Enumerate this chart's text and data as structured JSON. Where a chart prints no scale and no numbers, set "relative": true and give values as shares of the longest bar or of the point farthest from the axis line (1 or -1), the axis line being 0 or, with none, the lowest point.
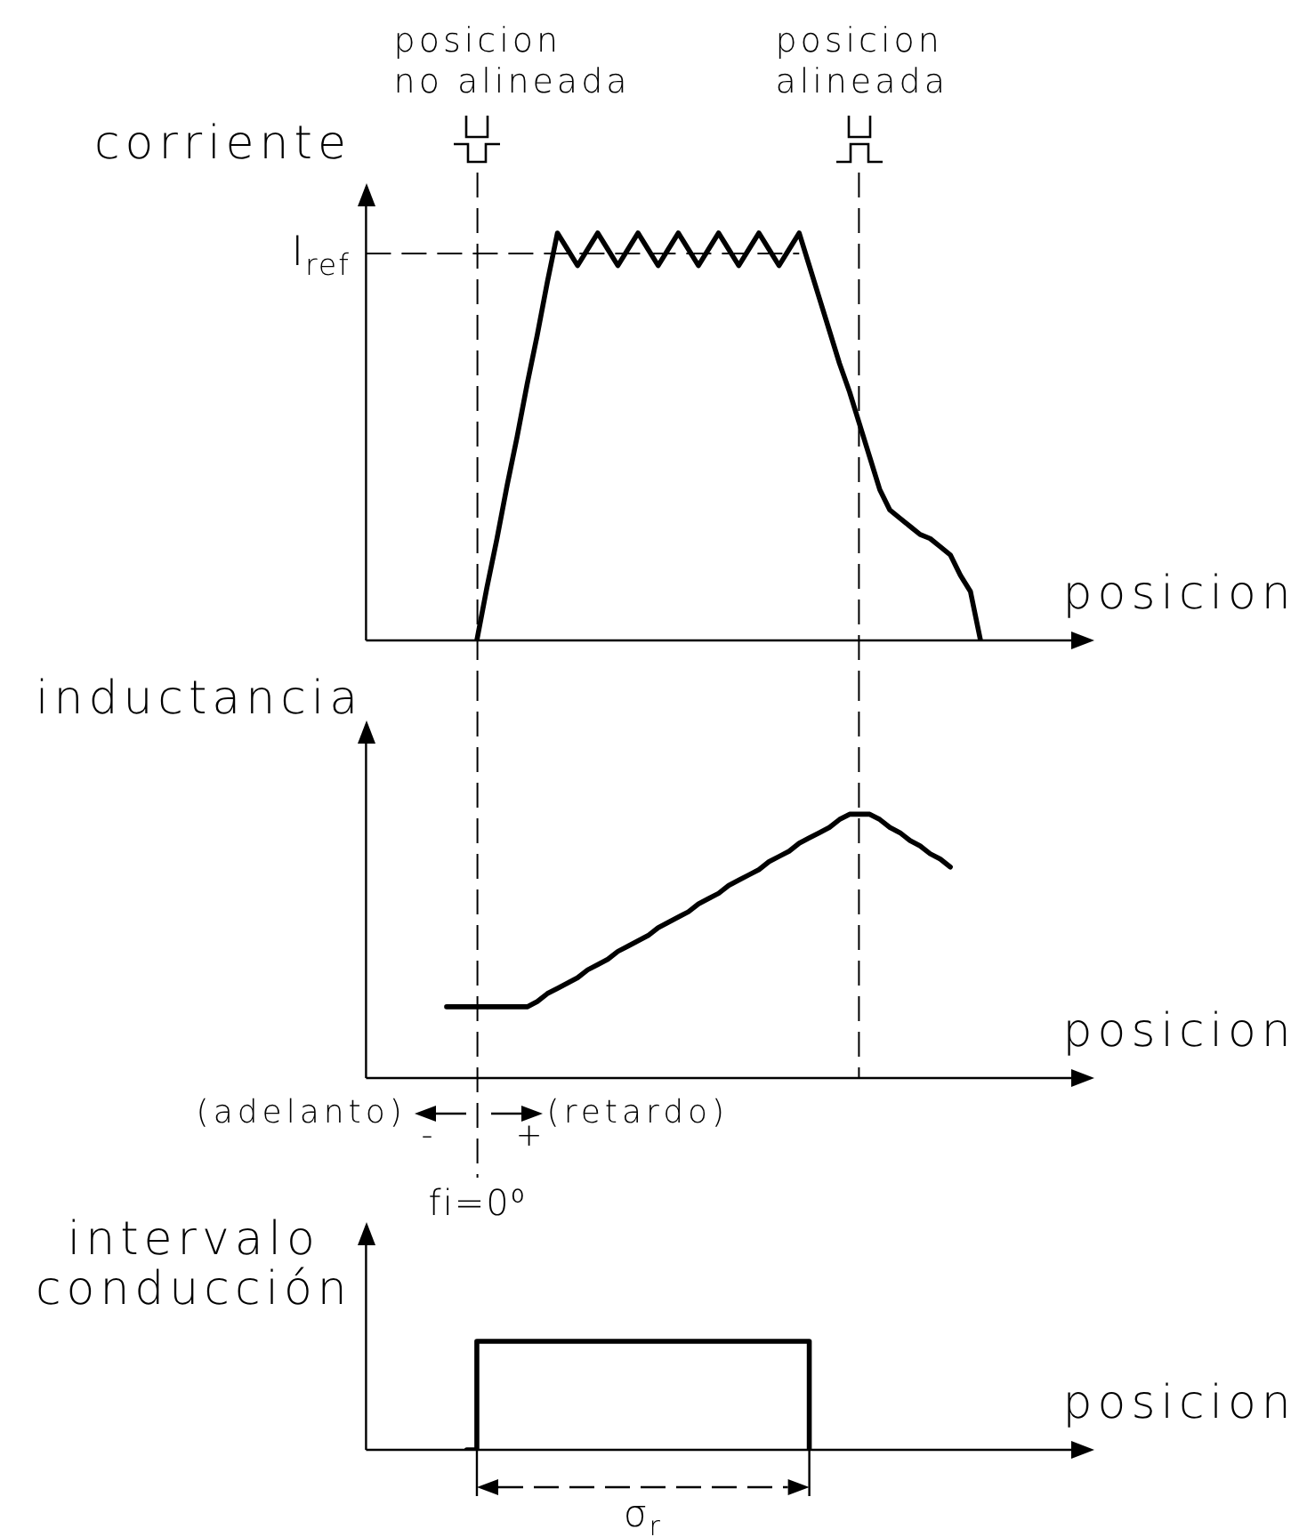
{
  "chart_data": [
    {
      "type": "line",
      "ylabel": "corriente",
      "xlabel": "posicion",
      "relative": true,
      "marker": "none",
      "categories": [
        null,
        null,
        null,
        null,
        null,
        null,
        null,
        null,
        null,
        null,
        null,
        null,
        null,
        null,
        null,
        null,
        null,
        null,
        null,
        null,
        null,
        null,
        null,
        null,
        null,
        null,
        null,
        null,
        null,
        null,
        null,
        null,
        null,
        null,
        null,
        null,
        null,
        null,
        null,
        null,
        null,
        null,
        null,
        null,
        null,
        null,
        null,
        null,
        null,
        null,
        null,
        null,
        null,
        null,
        null,
        null,
        null,
        null,
        null,
        null,
        null,
        null,
        null,
        null,
        null,
        null,
        null,
        null,
        null,
        null,
        null,
        null,
        null
      ],
      "series": [
        {
          "color": "#000000",
          "values": [
            null,
            null,
            null,
            null,
            null,
            null,
            null,
            null,
            null,
            null,
            null,
            0,
            0.13,
            0.25,
            0.38,
            0.5,
            0.63,
            0.75,
            0.88,
            1,
            0.96,
            0.92,
            0.96,
            1,
            0.96,
            0.92,
            0.96,
            1,
            0.96,
            0.92,
            0.96,
            1,
            0.96,
            0.92,
            0.96,
            1,
            0.96,
            0.92,
            0.96,
            1,
            0.96,
            0.92,
            0.96,
            1,
            0.92,
            0.84,
            0.76,
            0.68,
            0.61,
            0.53,
            0.45,
            0.37,
            0.32,
            0.3,
            0.28,
            0.26,
            0.25,
            0.23,
            0.21,
            0.16,
            0.12,
            0,
            null,
            null,
            null,
            null,
            null,
            null,
            null,
            null,
            null,
            null,
            null
          ]
        }
      ],
      "ref_lines": [
        {
          "axis": "y",
          "value": 0.95,
          "label": "I$_{ref}$",
          "color": "#000000",
          "line_style": "dashed"
        }
      ],
      "annotations": [
        "posicion\nno alineada",
        "posicion\nalineada"
      ]
    },
    {
      "type": "line",
      "ylabel": "inductancia",
      "xlabel": "posicion",
      "relative": true,
      "marker": "none",
      "categories": [
        null,
        null,
        null,
        null,
        null,
        null,
        null,
        null,
        null,
        null,
        null,
        null,
        null,
        null,
        null,
        null,
        null,
        null,
        null,
        null,
        null,
        null,
        null,
        null,
        null,
        null,
        null,
        null,
        null,
        null,
        null,
        null,
        null,
        null,
        null,
        null,
        null,
        null,
        null,
        null,
        null,
        null,
        null,
        null,
        null,
        null,
        null,
        null,
        null,
        null,
        null,
        null,
        null,
        null,
        null,
        null,
        null,
        null,
        null,
        null,
        null,
        null,
        null,
        null,
        null,
        null,
        null,
        null,
        null,
        null,
        null,
        null,
        null
      ],
      "series": [
        {
          "color": "#000000",
          "values": [
            null,
            null,
            null,
            null,
            null,
            null,
            null,
            null,
            0.27,
            0.27,
            0.27,
            0.27,
            0.27,
            0.27,
            0.27,
            0.27,
            0.27,
            0.29,
            0.32,
            0.34,
            0.36,
            0.38,
            0.41,
            0.43,
            0.45,
            0.48,
            0.5,
            0.52,
            0.54,
            0.57,
            0.59,
            0.61,
            0.63,
            0.66,
            0.68,
            0.7,
            0.73,
            0.75,
            0.77,
            0.79,
            0.82,
            0.84,
            0.86,
            0.89,
            0.91,
            0.93,
            0.95,
            0.98,
            1,
            1,
            1,
            0.98,
            0.95,
            0.93,
            0.9,
            0.88,
            0.85,
            0.83,
            0.8,
            null,
            null,
            null,
            null,
            null,
            null,
            null,
            null,
            null,
            null,
            null,
            null,
            null,
            null
          ]
        }
      ],
      "annotations": [
        "fi=0⁰",
        "(adelanto)",
        "(retardo)",
        "-",
        "+"
      ]
    },
    {
      "type": "step",
      "ylabel": "intervalo\nconducción",
      "xlabel": "posicion",
      "relative": true,
      "marker": "none",
      "categories": [
        null,
        null,
        null,
        null,
        null,
        null,
        null,
        null,
        null,
        null,
        null,
        null,
        null,
        null,
        null,
        null,
        null,
        null,
        null,
        null,
        null,
        null,
        null,
        null,
        null,
        null,
        null,
        null,
        null,
        null,
        null,
        null,
        null,
        null,
        null,
        null,
        null,
        null,
        null,
        null,
        null,
        null,
        null,
        null,
        null,
        null,
        null,
        null,
        null,
        null,
        null,
        null,
        null,
        null,
        null,
        null,
        null,
        null,
        null,
        null,
        null,
        null,
        null,
        null,
        null,
        null,
        null,
        null,
        null,
        null,
        null,
        null,
        null
      ],
      "series": [
        {
          "color": "#000000",
          "values": [
            null,
            null,
            null,
            null,
            null,
            null,
            null,
            null,
            null,
            null,
            0,
            1,
            1,
            1,
            1,
            1,
            1,
            1,
            1,
            1,
            1,
            1,
            1,
            1,
            1,
            1,
            1,
            1,
            1,
            1,
            1,
            1,
            1,
            1,
            1,
            1,
            1,
            1,
            1,
            1,
            1,
            1,
            1,
            1,
            0,
            null,
            null,
            null,
            null,
            null,
            null,
            null,
            null,
            null,
            null,
            null,
            null,
            null,
            null,
            null,
            null,
            null,
            null,
            null,
            null,
            null,
            null,
            null,
            null,
            null,
            null,
            null,
            null
          ]
        }
      ],
      "annotations": [
        "σ$_{r}$"
      ]
    }
  ]
}
